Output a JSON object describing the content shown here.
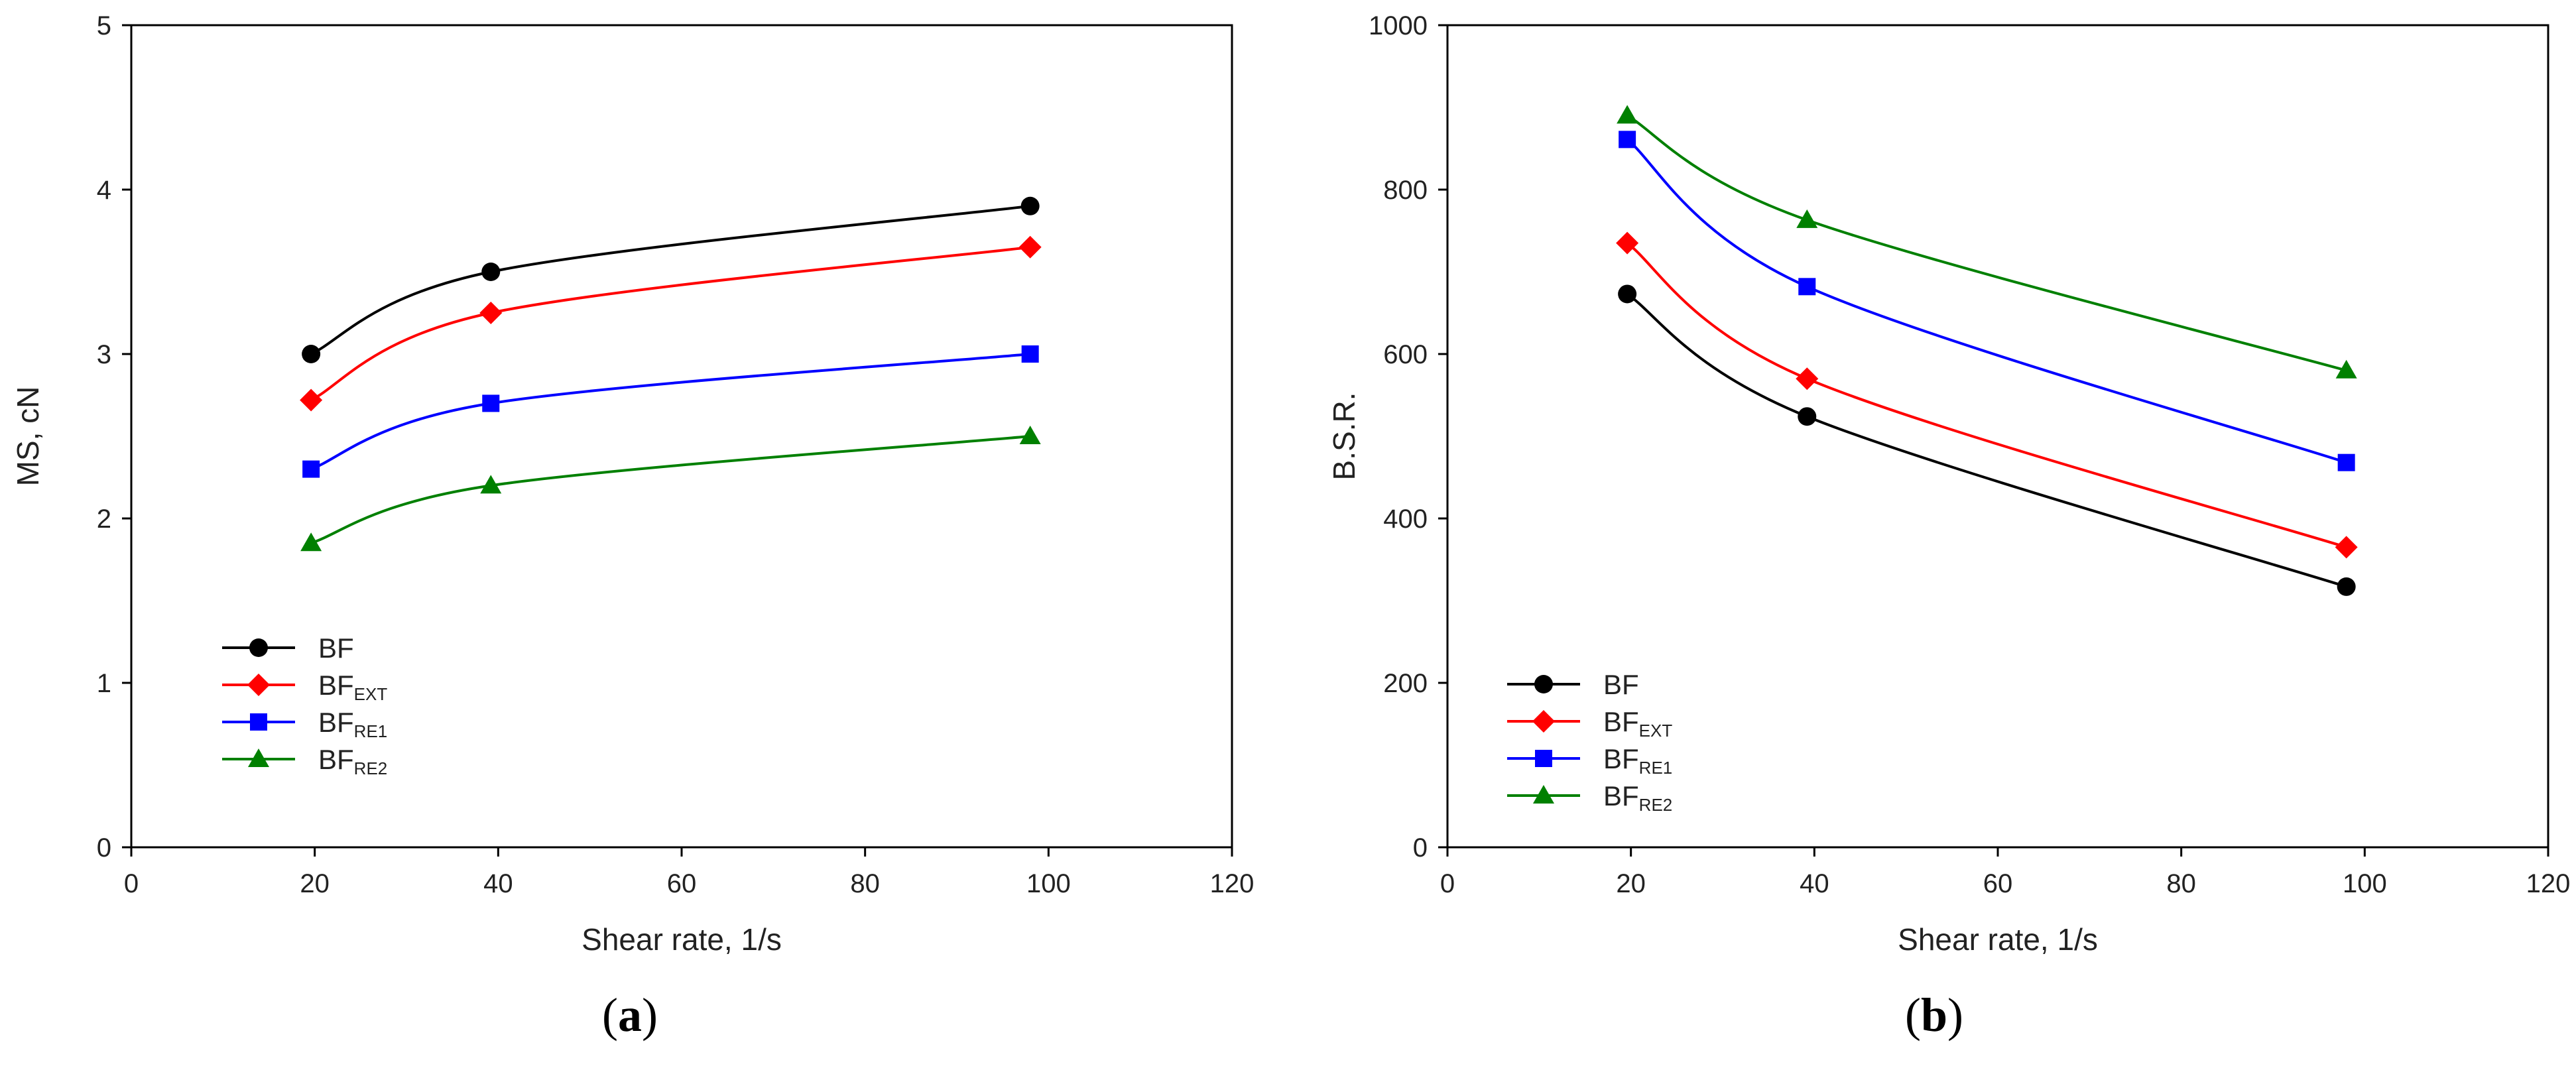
{
  "chart_data": [
    {
      "type": "line",
      "panel_label": "a",
      "title": "",
      "xlabel": "Shear rate,  1/s",
      "ylabel": "MS, cN",
      "xlim": [
        0,
        120
      ],
      "ylim": [
        0,
        5
      ],
      "xticks": [
        "0",
        "20",
        "40",
        "60",
        "80",
        "100",
        "120"
      ],
      "yticks": [
        "0",
        "1",
        "2",
        "3",
        "4",
        "5"
      ],
      "legend_position": "lower-left",
      "x": [
        19.6,
        39.2,
        98
      ],
      "series": [
        {
          "name": "BF",
          "name_main": "BF",
          "name_sub": "",
          "color": "#000000",
          "marker": "circle",
          "values": [
            3.0,
            3.5,
            3.9
          ]
        },
        {
          "name": "BF_EXT",
          "name_main": "BF",
          "name_sub": "EXT",
          "color": "#ff0000",
          "marker": "diamond",
          "values": [
            2.72,
            3.25,
            3.65
          ]
        },
        {
          "name": "BF_RE1",
          "name_main": "BF",
          "name_sub": "RE1",
          "color": "#0000ff",
          "marker": "square",
          "values": [
            2.3,
            2.7,
            3.0
          ]
        },
        {
          "name": "BF_RE2",
          "name_main": "BF",
          "name_sub": "RE2",
          "color": "#008000",
          "marker": "triangle",
          "values": [
            1.85,
            2.2,
            2.5
          ]
        }
      ]
    },
    {
      "type": "line",
      "panel_label": "b",
      "title": "",
      "xlabel": "Shear rate,  1/s",
      "ylabel": "B.S.R.",
      "xlim": [
        0,
        120
      ],
      "ylim": [
        0,
        1000
      ],
      "xticks": [
        "0",
        "20",
        "40",
        "60",
        "80",
        "100",
        "120"
      ],
      "yticks": [
        "0",
        "200",
        "400",
        "600",
        "800",
        "1000"
      ],
      "legend_position": "lower-left",
      "x": [
        19.6,
        39.2,
        98
      ],
      "series": [
        {
          "name": "BF",
          "name_main": "BF",
          "name_sub": "",
          "color": "#000000",
          "marker": "circle",
          "values": [
            673,
            524,
            317
          ]
        },
        {
          "name": "BF_EXT",
          "name_main": "BF",
          "name_sub": "EXT",
          "color": "#ff0000",
          "marker": "diamond",
          "values": [
            735,
            570,
            365
          ]
        },
        {
          "name": "BF_RE1",
          "name_main": "BF",
          "name_sub": "RE1",
          "color": "#0000ff",
          "marker": "square",
          "values": [
            861,
            682,
            468
          ]
        },
        {
          "name": "BF_RE2",
          "name_main": "BF",
          "name_sub": "RE2",
          "color": "#008000",
          "marker": "triangle",
          "values": [
            890,
            763,
            580
          ]
        }
      ]
    }
  ]
}
